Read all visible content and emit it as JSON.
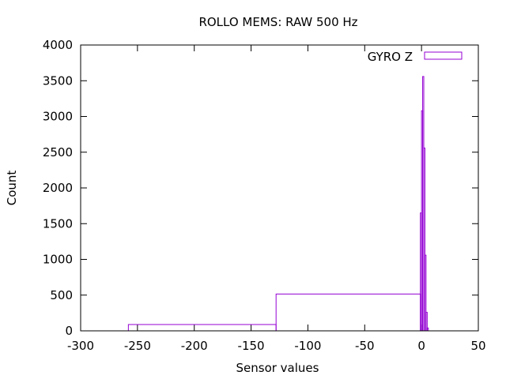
{
  "chart_data": {
    "type": "histogram",
    "title": "ROLLO MEMS: RAW 500 Hz",
    "xlabel": "Sensor values",
    "ylabel": "Count",
    "xlim": [
      -300,
      50
    ],
    "ylim": [
      0,
      4000
    ],
    "xticks": [
      -300,
      -250,
      -200,
      -150,
      -100,
      -50,
      0,
      50
    ],
    "yticks": [
      0,
      500,
      1000,
      1500,
      2000,
      2500,
      3000,
      3500,
      4000
    ],
    "grid": false,
    "legend_position": "top-right",
    "series": [
      {
        "name": "GYRO Z",
        "color": "#9400D3",
        "steps": [
          {
            "x0": -258,
            "x1": -128,
            "y": 88
          },
          {
            "x0": -128,
            "x1": -1,
            "y": 515
          },
          {
            "x0": -1,
            "x1": 0,
            "y": 1650
          },
          {
            "x0": 0,
            "x1": 1,
            "y": 3080
          },
          {
            "x0": 1,
            "x1": 2,
            "y": 3560
          },
          {
            "x0": 2,
            "x1": 3,
            "y": 2560
          },
          {
            "x0": 3,
            "x1": 4,
            "y": 1060
          },
          {
            "x0": 4,
            "x1": 5,
            "y": 260
          },
          {
            "x0": 5,
            "x1": 6,
            "y": 40
          }
        ]
      }
    ]
  }
}
